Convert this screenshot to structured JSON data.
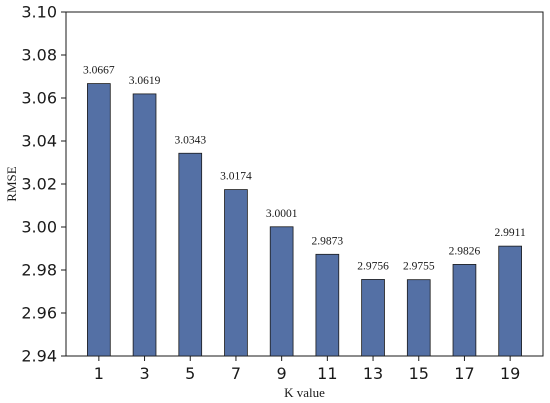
{
  "chart_data": {
    "type": "bar",
    "categories": [
      "1",
      "3",
      "5",
      "7",
      "9",
      "11",
      "13",
      "15",
      "17",
      "19"
    ],
    "values": [
      3.0667,
      3.0619,
      3.0343,
      3.0174,
      3.0001,
      2.9873,
      2.9756,
      2.9755,
      2.9826,
      2.9911
    ],
    "data_labels": [
      "3.0667",
      "3.0619",
      "3.0343",
      "3.0174",
      "3.0001",
      "2.9873",
      "2.9756",
      "2.9755",
      "2.9826",
      "2.9911"
    ],
    "title": "",
    "xlabel": "K value",
    "ylabel": "RMSE",
    "ylim": [
      2.94,
      3.1
    ],
    "yticks": [
      "2.94",
      "2.96",
      "2.98",
      "3.00",
      "3.02",
      "3.04",
      "3.06",
      "3.08",
      "3.10"
    ],
    "grid": false,
    "legend": "none",
    "bar_color": "#5470a5",
    "bar_edge_color": "#1a1a1a"
  }
}
